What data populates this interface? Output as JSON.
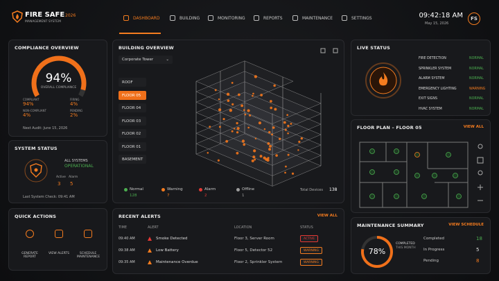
{
  "header": {
    "brand": "FIRE SAFE",
    "year": "2026",
    "subtitle": "MANAGEMENT SYSTEM",
    "nav": [
      "DASHBOARD",
      "BUILDING",
      "MONITORING",
      "REPORTS",
      "MAINTENANCE",
      "SETTINGS"
    ],
    "time": "09:42:18 AM",
    "date": "May 15, 2026",
    "avatar": "FS"
  },
  "compliance": {
    "title": "COMPLIANCE OVERVIEW",
    "score": {
      "value": 94,
      "label": "94%"
    },
    "caption": "OVERALL COMPLIANCE",
    "stats": [
      {
        "label": "COMPLIANT",
        "value": "94%"
      },
      {
        "label": "FIRING",
        "value": "4%"
      },
      {
        "label": "NON-COMPLIANT",
        "value": "4%"
      },
      {
        "label": "PENDING",
        "value": "2%"
      }
    ],
    "next_audit": "Next Audit: June 15, 2026"
  },
  "system": {
    "title": "SYSTEM STATUS",
    "line1": "ALL SYSTEMS",
    "line2": "OPERATIONAL",
    "counts": [
      {
        "label": "Active",
        "value": 3
      },
      {
        "label": "Alarm",
        "value": 5
      }
    ],
    "last_check": "Last System Check: 09:41 AM"
  },
  "quick": {
    "title": "QUICK ACTIONS",
    "actions": [
      "GENERATE REPORT",
      "VIEW ALERTS",
      "SCHEDULE MAINTENANCE"
    ]
  },
  "building": {
    "title": "BUILDING OVERVIEW",
    "select": "Corporate Tower",
    "floors": [
      "ROOF",
      "FLOOR 05",
      "FLOOR 04",
      "FLOOR 03",
      "FLOOR 02",
      "FLOOR 01",
      "BASEMENT"
    ],
    "legend": [
      {
        "label": "Normal",
        "value": 128,
        "color": "#4caf50"
      },
      {
        "label": "Warning",
        "value": 7,
        "color": "#f57c1f"
      },
      {
        "label": "Alarm",
        "value": 2,
        "color": "#e53935"
      },
      {
        "label": "Offline",
        "value": 1,
        "color": "#9e9e9e"
      }
    ],
    "total_label": "Total Devices",
    "total": 138
  },
  "live": {
    "title": "LIVE STATUS",
    "rows": [
      {
        "name": "FIRE DETECTION",
        "status": "NORMAL",
        "color": "#4caf50"
      },
      {
        "name": "SPRINKLER SYSTEM",
        "status": "NORMAL",
        "color": "#4caf50"
      },
      {
        "name": "ALARM SYSTEM",
        "status": "NORMAL",
        "color": "#4caf50"
      },
      {
        "name": "EMERGENCY LIGHTING",
        "status": "WARNING",
        "color": "#f57c1f"
      },
      {
        "name": "EXIT SIGNS",
        "status": "NORMAL",
        "color": "#4caf50"
      },
      {
        "name": "HVAC SYSTEM",
        "status": "NORMAL",
        "color": "#4caf50"
      }
    ]
  },
  "floorplan": {
    "title": "FLOOR PLAN – FLOOR 05",
    "link": "VIEW ALL"
  },
  "alerts": {
    "title": "RECENT ALERTS",
    "link": "VIEW ALL",
    "headers": [
      "TIME",
      "ALERT",
      "LOCATION",
      "STATUS"
    ],
    "rows": [
      {
        "time": "09:40 AM",
        "alert": "Smoke Detected",
        "location": "Floor 3, Server Room",
        "status": "ACTIVE",
        "color": "#e53935"
      },
      {
        "time": "09:38 AM",
        "alert": "Low Battery",
        "location": "Floor 5, Detector 52",
        "status": "WARNING",
        "color": "#f57c1f"
      },
      {
        "time": "09:35 AM",
        "alert": "Maintenance Overdue",
        "location": "Floor 2, Sprinkler System",
        "status": "WARNING",
        "color": "#f57c1f"
      }
    ]
  },
  "maintenance": {
    "title": "MAINTENANCE SUMMARY",
    "link": "VIEW SCHEDULE",
    "score": {
      "value": 78,
      "label": "78%"
    },
    "caption1": "COMPLETED",
    "caption2": "THIS MONTH",
    "rows": [
      {
        "label": "Completed",
        "value": 18,
        "color": "#4caf50"
      },
      {
        "label": "In Progress",
        "value": 5,
        "color": "#e0e0e0"
      },
      {
        "label": "Pending",
        "value": 8,
        "color": "#f57c1f"
      }
    ]
  }
}
